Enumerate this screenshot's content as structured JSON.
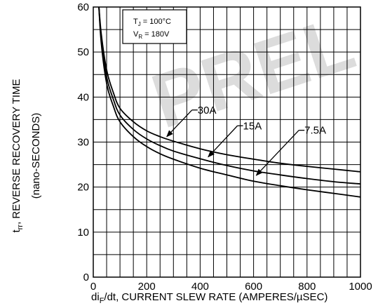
{
  "chart_data": {
    "type": "line",
    "watermark": "PREL",
    "xlim": [
      0,
      1000
    ],
    "ylim": [
      0,
      60
    ],
    "x_ticks": [
      0,
      200,
      400,
      600,
      800,
      1000
    ],
    "y_ticks": [
      0,
      10,
      20,
      30,
      40,
      50,
      60
    ],
    "grid": true,
    "xlabel": {
      "prefix": "di",
      "prefix_sub": "F",
      "rest": "/dt, CURRENT SLEW RATE (AMPERES/µSEC)"
    },
    "ylabel": {
      "line1_pre": "t",
      "line1_sub": "rr",
      "line1_post": ", REVERSE RECOVERY TIME",
      "line2": "(nano-SECONDS)"
    },
    "conditions": {
      "tj_pre": "T",
      "tj_sub": "J",
      "tj_post": " = 100°C",
      "vr_pre": "V",
      "vr_sub": "R",
      "vr_post": " = 180V"
    },
    "series": [
      {
        "name": "30A",
        "x": [
          20,
          30,
          50,
          75,
          100,
          150,
          200,
          250,
          300,
          400,
          500,
          600,
          700,
          800,
          900,
          1000
        ],
        "y": [
          61,
          54,
          46,
          41,
          37.5,
          34.5,
          32.5,
          31.2,
          30.2,
          28.5,
          27.2,
          26.2,
          25.3,
          24.6,
          24,
          23.4
        ]
      },
      {
        "name": "15A",
        "x": [
          20,
          30,
          50,
          75,
          100,
          150,
          200,
          250,
          300,
          400,
          500,
          600,
          700,
          800,
          900,
          1000
        ],
        "y": [
          61,
          53,
          44.5,
          39.5,
          36,
          32.8,
          30.7,
          29.2,
          28,
          26.3,
          24.8,
          23.6,
          22.7,
          21.9,
          21.2,
          20.7
        ]
      },
      {
        "name": "7.5A",
        "x": [
          20,
          30,
          50,
          75,
          100,
          150,
          200,
          250,
          300,
          400,
          500,
          600,
          700,
          800,
          900,
          1000
        ],
        "y": [
          61,
          52,
          43,
          38,
          34.5,
          31.2,
          29,
          27.4,
          26.2,
          24.2,
          22.7,
          21.3,
          20.3,
          19.4,
          18.6,
          17.8
        ]
      }
    ],
    "annotations": [
      {
        "text": "30A",
        "label_at": [
          380,
          36.5
        ],
        "arrow_to": [
          275,
          31.2
        ]
      },
      {
        "text": "15A",
        "label_at": [
          550,
          33
        ],
        "arrow_to": [
          430,
          26.7
        ]
      },
      {
        "text": "7.5A",
        "label_at": [
          780,
          32
        ],
        "arrow_to": [
          610,
          22.6
        ]
      }
    ]
  }
}
